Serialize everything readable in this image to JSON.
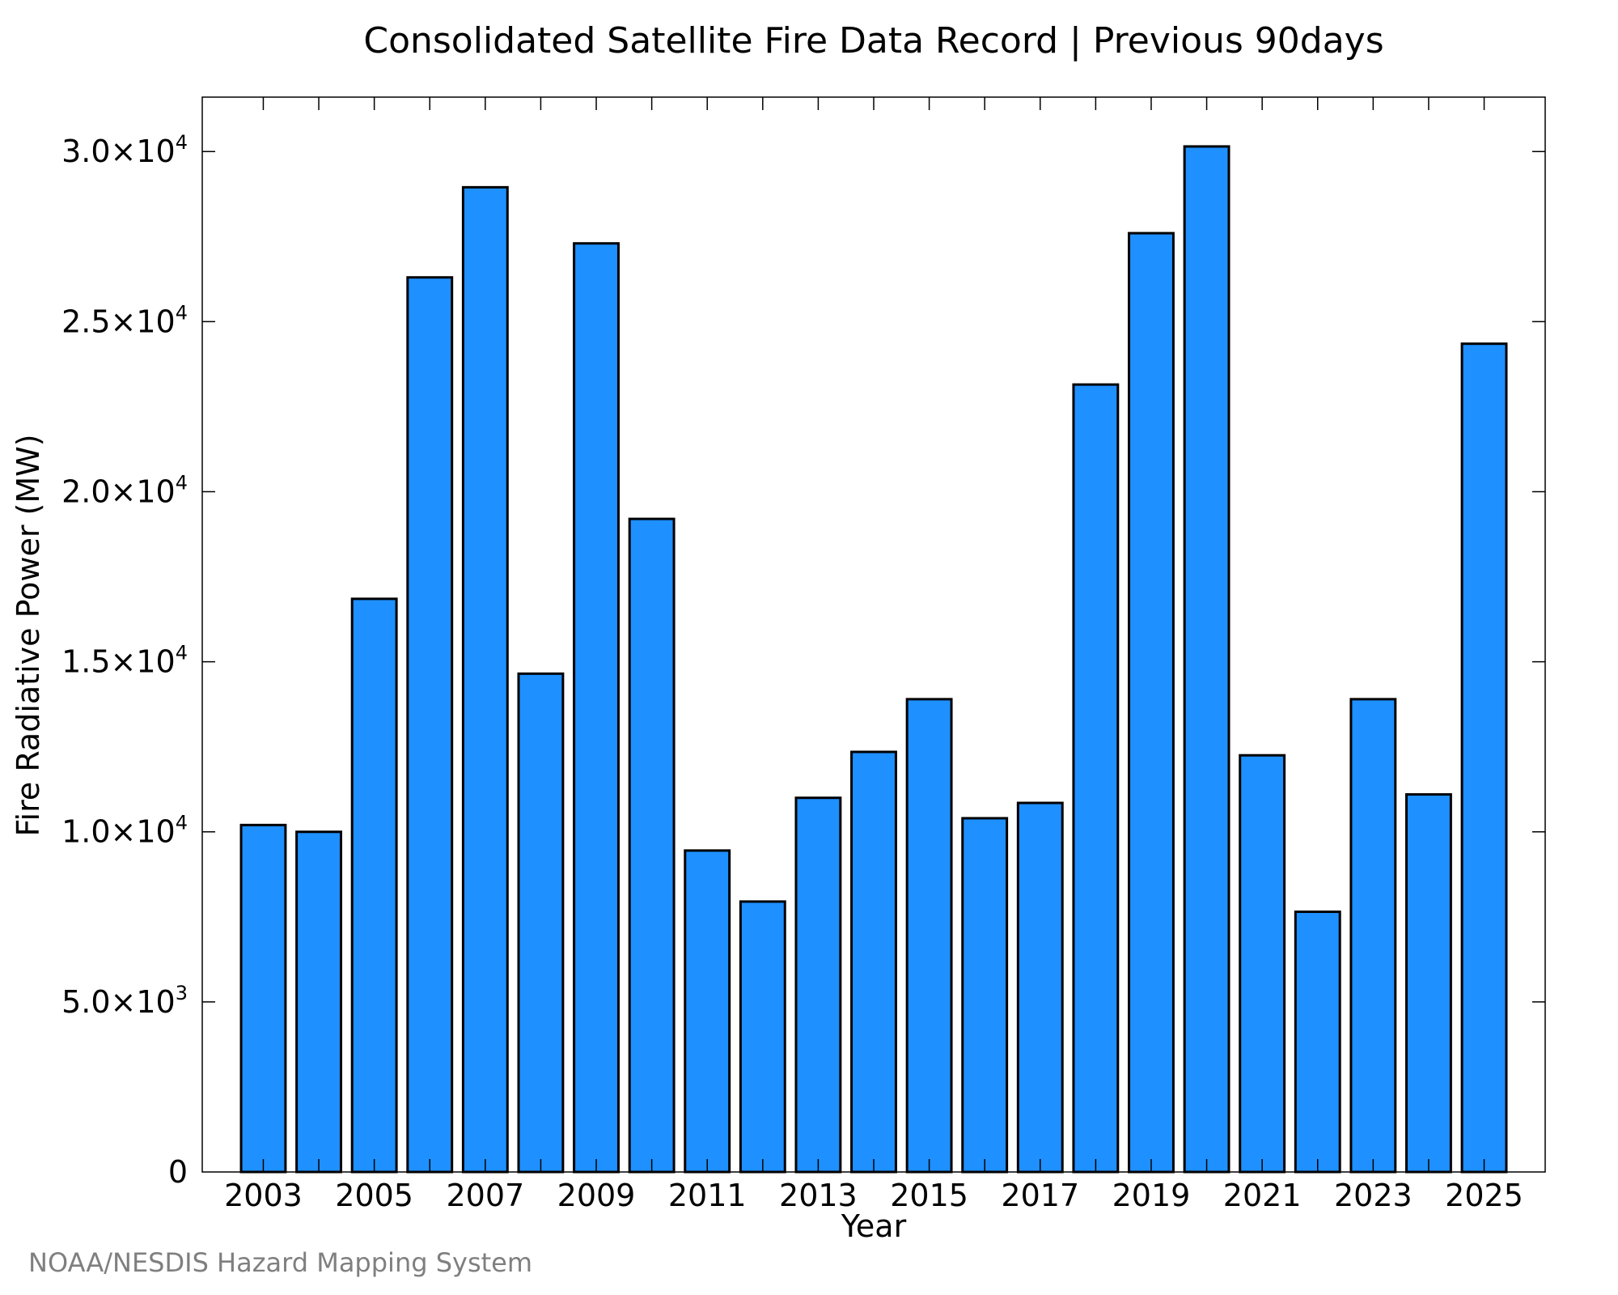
{
  "chart_data": {
    "type": "bar",
    "title": "Consolidated Satellite Fire Data Record | Previous 90days",
    "xlabel": "Year",
    "ylabel": "Fire Radiative Power (MW)",
    "categories": [
      "2003",
      "2004",
      "2005",
      "2006",
      "2007",
      "2008",
      "2009",
      "2010",
      "2011",
      "2012",
      "2013",
      "2014",
      "2015",
      "2016",
      "2017",
      "2018",
      "2019",
      "2020",
      "2021",
      "2022",
      "2023",
      "2024",
      "2025"
    ],
    "values": [
      10200,
      10000,
      16850,
      26300,
      28950,
      14650,
      27300,
      19200,
      9450,
      7950,
      11000,
      12350,
      13900,
      10400,
      10850,
      23150,
      27600,
      30150,
      12250,
      7650,
      13900,
      11100,
      24350
    ],
    "x_tick_labels": [
      "2003",
      "2005",
      "2007",
      "2009",
      "2011",
      "2013",
      "2015",
      "2017",
      "2019",
      "2021",
      "2023",
      "2025"
    ],
    "y_ticks": [
      {
        "value": 0,
        "mantissa": "0",
        "exp": ""
      },
      {
        "value": 5000,
        "mantissa": "5.0×10",
        "exp": "3"
      },
      {
        "value": 10000,
        "mantissa": "1.0×10",
        "exp": "4"
      },
      {
        "value": 15000,
        "mantissa": "1.5×10",
        "exp": "4"
      },
      {
        "value": 20000,
        "mantissa": "2.0×10",
        "exp": "4"
      },
      {
        "value": 25000,
        "mantissa": "2.5×10",
        "exp": "4"
      },
      {
        "value": 30000,
        "mantissa": "3.0×10",
        "exp": "4"
      }
    ],
    "ylim": [
      0,
      31600
    ],
    "grid": false,
    "legend": "none",
    "bar_color": "#1e90ff",
    "edge_color": "#000000"
  },
  "footer": {
    "credit": "NOAA/NESDIS Hazard Mapping System"
  }
}
